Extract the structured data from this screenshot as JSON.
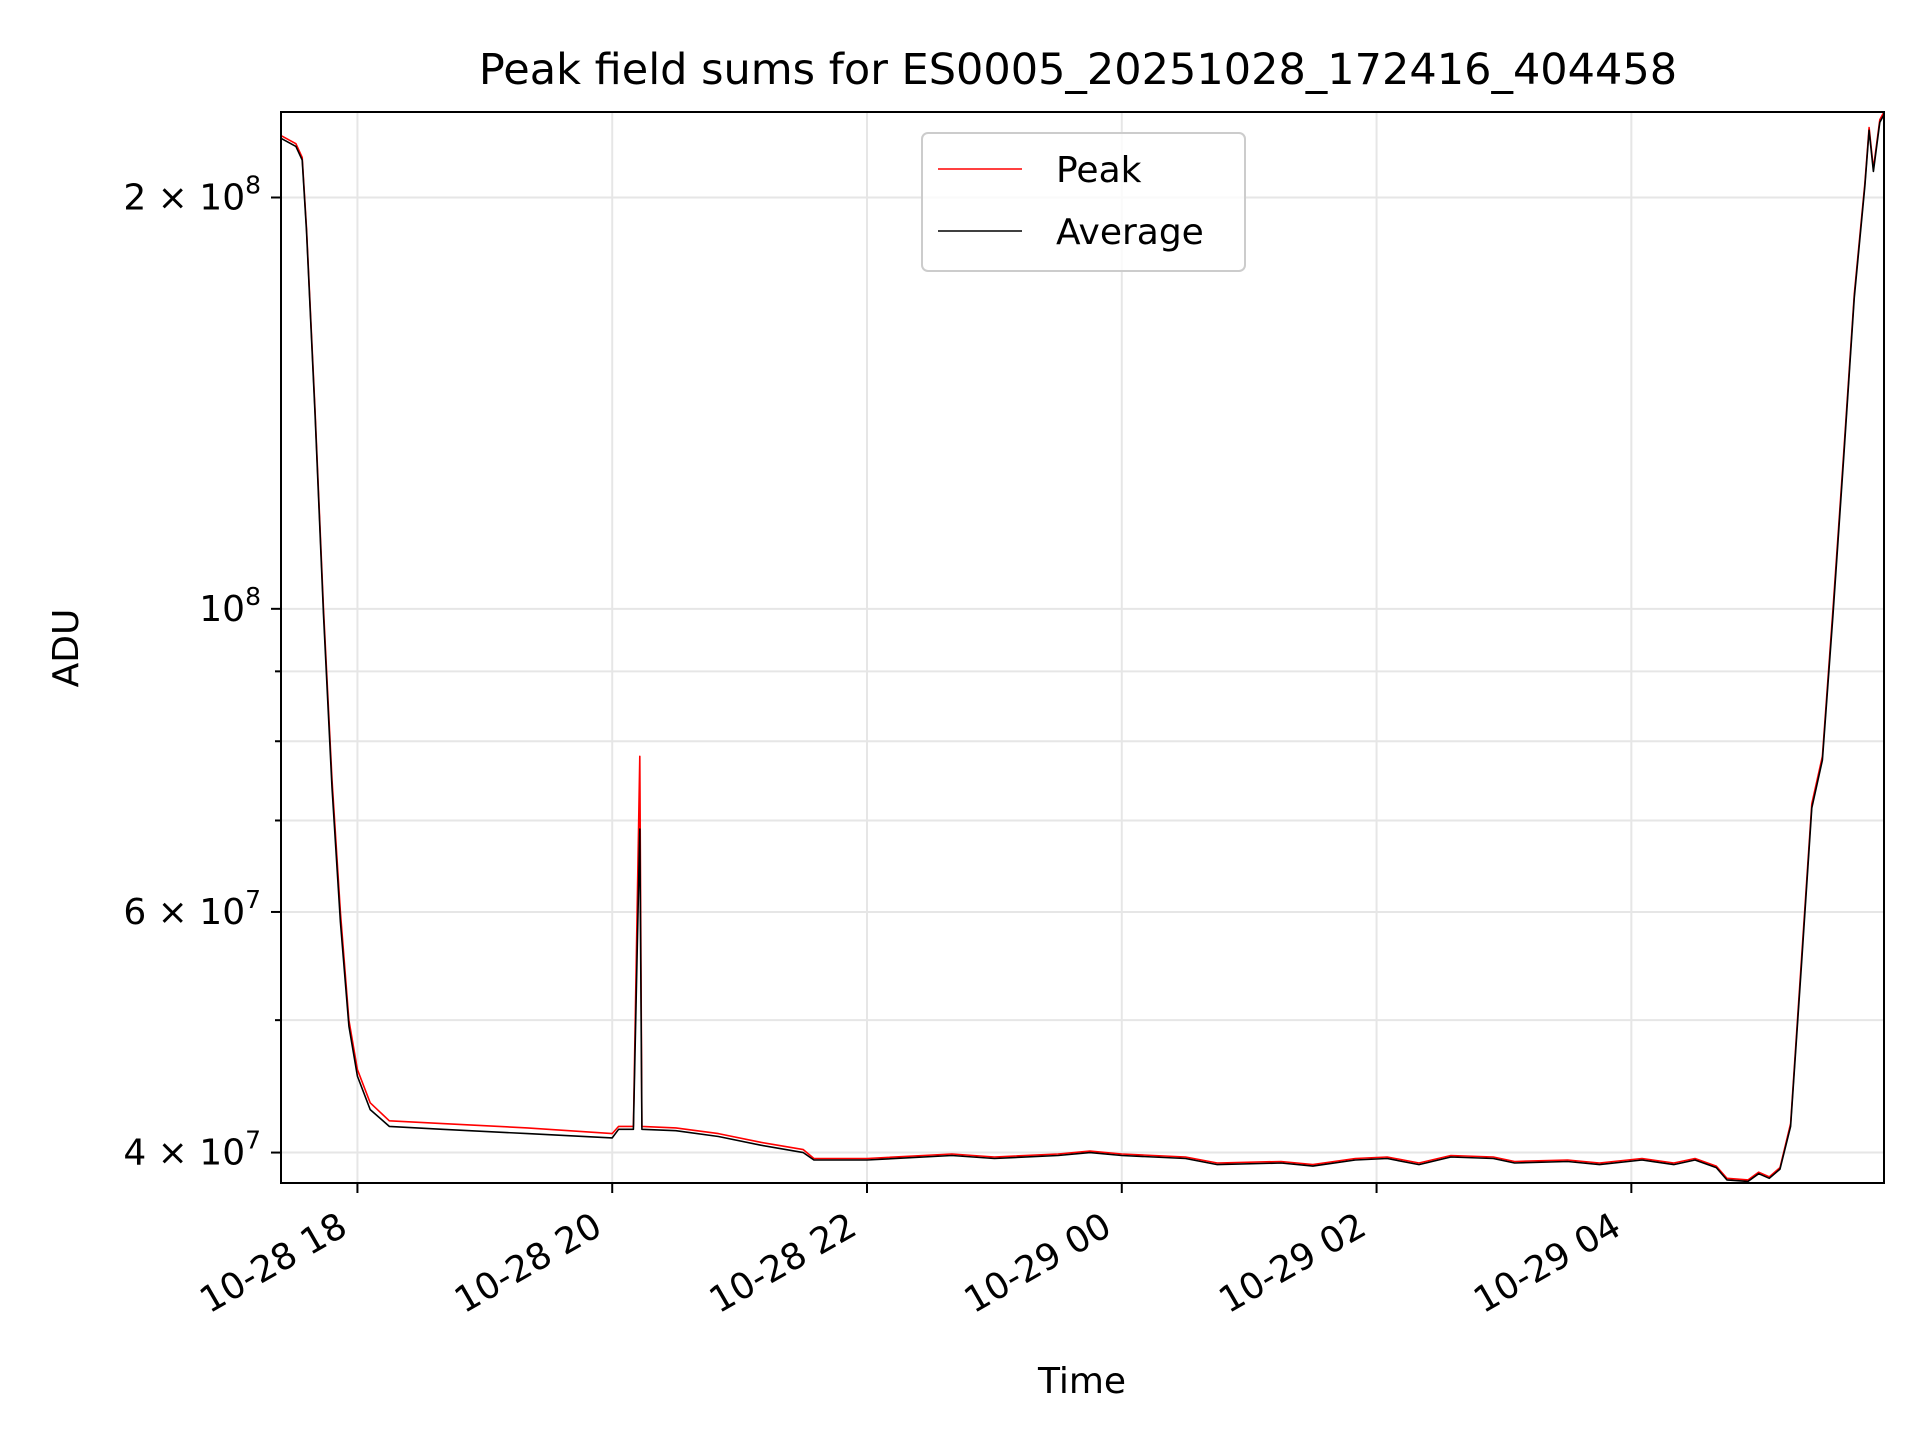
{
  "chart_data": {
    "type": "line",
    "title": "Peak field sums for ES0005_20251028_172416_404458",
    "xlabel": "Time",
    "ylabel": "ADU",
    "yscale": "log",
    "xlim": [
      "2025-10-28 17:24",
      "2025-10-29 05:59"
    ],
    "ylim": [
      38000000,
      231000000
    ],
    "grid": true,
    "legend_position": "top-center",
    "x_ticks": [
      {
        "value": "2025-10-28 18:00",
        "label": "10-28 18"
      },
      {
        "value": "2025-10-28 20:00",
        "label": "10-28 20"
      },
      {
        "value": "2025-10-28 22:00",
        "label": "10-28 22"
      },
      {
        "value": "2025-10-29 00:00",
        "label": "10-29 00"
      },
      {
        "value": "2025-10-29 02:00",
        "label": "10-29 02"
      },
      {
        "value": "2025-10-29 04:00",
        "label": "10-29 04"
      }
    ],
    "y_ticks": [
      {
        "value": 40000000,
        "base": "4 × 10",
        "exp": "7"
      },
      {
        "value": 60000000,
        "base": "6 × 10",
        "exp": "7"
      },
      {
        "value": 100000000,
        "base": "10",
        "exp": "8"
      },
      {
        "value": 200000000,
        "base": "2 × 10",
        "exp": "8"
      }
    ],
    "y_minor_ticks": [
      50000000,
      70000000,
      80000000,
      90000000
    ],
    "series": [
      {
        "name": "Peak",
        "color": "#ff0000",
        "points": [
          [
            "2025-10-28 17:24",
            222000000
          ],
          [
            "2025-10-28 17:31",
            219000000
          ],
          [
            "2025-10-28 17:34",
            214000000
          ],
          [
            "2025-10-28 17:36",
            190000000
          ],
          [
            "2025-10-28 17:40",
            140000000
          ],
          [
            "2025-10-28 17:44",
            100000000
          ],
          [
            "2025-10-28 17:48",
            75000000
          ],
          [
            "2025-10-28 17:52",
            60000000
          ],
          [
            "2025-10-28 17:56",
            50000000
          ],
          [
            "2025-10-28 18:00",
            46000000
          ],
          [
            "2025-10-28 18:06",
            43500000
          ],
          [
            "2025-10-28 18:15",
            42200000
          ],
          [
            "2025-10-28 18:40",
            42000000
          ],
          [
            "2025-10-28 19:20",
            41700000
          ],
          [
            "2025-10-28 20:00",
            41300000
          ],
          [
            "2025-10-28 20:03",
            41800000
          ],
          [
            "2025-10-28 20:10",
            41800000
          ],
          [
            "2025-10-28 20:13",
            78000000
          ],
          [
            "2025-10-28 20:14",
            41800000
          ],
          [
            "2025-10-28 20:30",
            41700000
          ],
          [
            "2025-10-28 20:50",
            41300000
          ],
          [
            "2025-10-28 21:10",
            40700000
          ],
          [
            "2025-10-28 21:30",
            40200000
          ],
          [
            "2025-10-28 21:35",
            39600000
          ],
          [
            "2025-10-28 22:00",
            39600000
          ],
          [
            "2025-10-28 22:40",
            39900000
          ],
          [
            "2025-10-28 23:00",
            39700000
          ],
          [
            "2025-10-28 23:30",
            39900000
          ],
          [
            "2025-10-28 23:45",
            40100000
          ],
          [
            "2025-10-29 00:00",
            39900000
          ],
          [
            "2025-10-29 00:30",
            39700000
          ],
          [
            "2025-10-29 00:45",
            39300000
          ],
          [
            "2025-10-29 01:15",
            39400000
          ],
          [
            "2025-10-29 01:30",
            39200000
          ],
          [
            "2025-10-29 01:50",
            39600000
          ],
          [
            "2025-10-29 02:05",
            39700000
          ],
          [
            "2025-10-29 02:20",
            39300000
          ],
          [
            "2025-10-29 02:35",
            39800000
          ],
          [
            "2025-10-29 02:55",
            39700000
          ],
          [
            "2025-10-29 03:05",
            39400000
          ],
          [
            "2025-10-29 03:30",
            39500000
          ],
          [
            "2025-10-29 03:45",
            39300000
          ],
          [
            "2025-10-29 04:05",
            39600000
          ],
          [
            "2025-10-29 04:20",
            39300000
          ],
          [
            "2025-10-29 04:30",
            39600000
          ],
          [
            "2025-10-29 04:40",
            39100000
          ],
          [
            "2025-10-29 04:45",
            38300000
          ],
          [
            "2025-10-29 04:55",
            38200000
          ],
          [
            "2025-10-29 05:00",
            38700000
          ],
          [
            "2025-10-29 05:05",
            38400000
          ],
          [
            "2025-10-29 05:10",
            39000000
          ],
          [
            "2025-10-29 05:15",
            42000000
          ],
          [
            "2025-10-29 05:20",
            55000000
          ],
          [
            "2025-10-29 05:25",
            72000000
          ],
          [
            "2025-10-29 05:30",
            78000000
          ],
          [
            "2025-10-29 05:35",
            100000000
          ],
          [
            "2025-10-29 05:40",
            130000000
          ],
          [
            "2025-10-29 05:45",
            170000000
          ],
          [
            "2025-10-29 05:50",
            205000000
          ],
          [
            "2025-10-29 05:52",
            225000000
          ],
          [
            "2025-10-29 05:54",
            210000000
          ],
          [
            "2025-10-29 05:57",
            228000000
          ],
          [
            "2025-10-29 05:59",
            231000000
          ]
        ]
      },
      {
        "name": "Average",
        "color": "#000000",
        "points": [
          [
            "2025-10-28 17:24",
            221000000
          ],
          [
            "2025-10-28 17:31",
            218000000
          ],
          [
            "2025-10-28 17:34",
            213000000
          ],
          [
            "2025-10-28 17:36",
            189000000
          ],
          [
            "2025-10-28 17:40",
            139000000
          ],
          [
            "2025-10-28 17:44",
            99000000
          ],
          [
            "2025-10-28 17:48",
            74000000
          ],
          [
            "2025-10-28 17:52",
            59000000
          ],
          [
            "2025-10-28 17:56",
            49500000
          ],
          [
            "2025-10-28 18:00",
            45500000
          ],
          [
            "2025-10-28 18:06",
            43000000
          ],
          [
            "2025-10-28 18:15",
            41800000
          ],
          [
            "2025-10-28 18:40",
            41600000
          ],
          [
            "2025-10-28 19:20",
            41300000
          ],
          [
            "2025-10-28 20:00",
            41000000
          ],
          [
            "2025-10-28 20:03",
            41600000
          ],
          [
            "2025-10-28 20:10",
            41600000
          ],
          [
            "2025-10-28 20:13",
            69000000
          ],
          [
            "2025-10-28 20:14",
            41600000
          ],
          [
            "2025-10-28 20:30",
            41500000
          ],
          [
            "2025-10-28 20:50",
            41100000
          ],
          [
            "2025-10-28 21:10",
            40500000
          ],
          [
            "2025-10-28 21:30",
            40000000
          ],
          [
            "2025-10-28 21:35",
            39500000
          ],
          [
            "2025-10-28 22:00",
            39500000
          ],
          [
            "2025-10-28 22:40",
            39800000
          ],
          [
            "2025-10-28 23:00",
            39600000
          ],
          [
            "2025-10-28 23:30",
            39800000
          ],
          [
            "2025-10-28 23:45",
            40000000
          ],
          [
            "2025-10-29 00:00",
            39800000
          ],
          [
            "2025-10-29 00:30",
            39600000
          ],
          [
            "2025-10-29 00:45",
            39200000
          ],
          [
            "2025-10-29 01:15",
            39300000
          ],
          [
            "2025-10-29 01:30",
            39100000
          ],
          [
            "2025-10-29 01:50",
            39500000
          ],
          [
            "2025-10-29 02:05",
            39600000
          ],
          [
            "2025-10-29 02:20",
            39200000
          ],
          [
            "2025-10-29 02:35",
            39700000
          ],
          [
            "2025-10-29 02:55",
            39600000
          ],
          [
            "2025-10-29 03:05",
            39300000
          ],
          [
            "2025-10-29 03:30",
            39400000
          ],
          [
            "2025-10-29 03:45",
            39200000
          ],
          [
            "2025-10-29 04:05",
            39500000
          ],
          [
            "2025-10-29 04:20",
            39200000
          ],
          [
            "2025-10-29 04:30",
            39500000
          ],
          [
            "2025-10-29 04:40",
            39000000
          ],
          [
            "2025-10-29 04:45",
            38200000
          ],
          [
            "2025-10-29 04:55",
            38100000
          ],
          [
            "2025-10-29 05:00",
            38600000
          ],
          [
            "2025-10-29 05:05",
            38300000
          ],
          [
            "2025-10-29 05:10",
            38900000
          ],
          [
            "2025-10-29 05:15",
            41800000
          ],
          [
            "2025-10-29 05:20",
            54500000
          ],
          [
            "2025-10-29 05:25",
            71500000
          ],
          [
            "2025-10-29 05:30",
            77500000
          ],
          [
            "2025-10-29 05:35",
            99000000
          ],
          [
            "2025-10-29 05:40",
            129000000
          ],
          [
            "2025-10-29 05:45",
            169000000
          ],
          [
            "2025-10-29 05:50",
            204000000
          ],
          [
            "2025-10-29 05:52",
            224000000
          ],
          [
            "2025-10-29 05:54",
            209000000
          ],
          [
            "2025-10-29 05:57",
            227000000
          ],
          [
            "2025-10-29 05:59",
            230000000
          ]
        ]
      }
    ]
  }
}
